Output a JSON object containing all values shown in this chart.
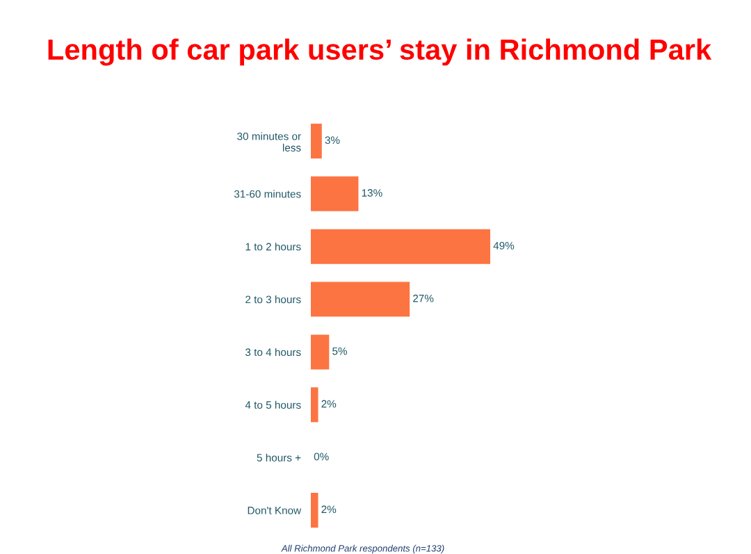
{
  "chart_data": {
    "type": "bar",
    "orientation": "horizontal",
    "title": "Length of car park users’ stay in Richmond Park",
    "categories": [
      "30 minutes or\nless",
      "31-60 minutes",
      "1 to 2 hours",
      "2 to 3 hours",
      "3 to 4 hours",
      "4 to 5 hours",
      "5 hours +",
      "Don't Know"
    ],
    "values": [
      3,
      13,
      49,
      27,
      5,
      2,
      0,
      2
    ],
    "value_labels": [
      "3%",
      "13%",
      "49%",
      "27%",
      "5%",
      "2%",
      "0%",
      "2%"
    ],
    "color": "#fd7443",
    "annotations": [
      "All Richmond Park respondents (n=133)"
    ],
    "grid": false,
    "legend": false
  }
}
